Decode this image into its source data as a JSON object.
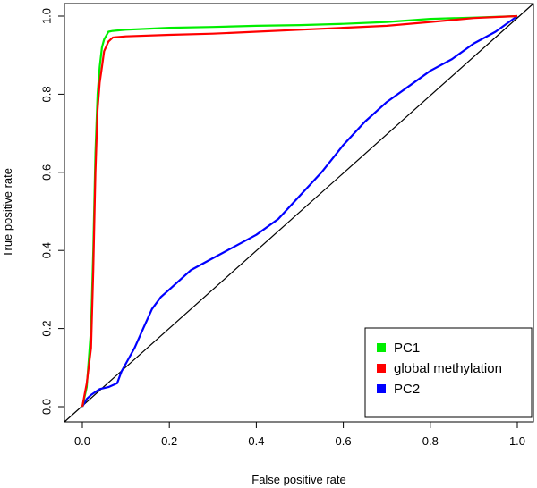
{
  "chart_data": {
    "type": "line",
    "title": "",
    "xlabel": "False positive rate",
    "ylabel": "True positive rate",
    "xlim": [
      0,
      1
    ],
    "ylim": [
      0,
      1
    ],
    "x_ticks": [
      "0.0",
      "0.2",
      "0.4",
      "0.6",
      "0.8",
      "1.0"
    ],
    "y_ticks": [
      "0.0",
      "0.2",
      "0.4",
      "0.6",
      "0.8",
      "1.0"
    ],
    "grid": false,
    "legend_position": "bottom-right",
    "diagonal_reference": true,
    "series": [
      {
        "name": "PC1",
        "color": "#00ee00",
        "x": [
          0,
          0.01,
          0.02,
          0.025,
          0.03,
          0.035,
          0.04,
          0.045,
          0.05,
          0.06,
          0.07,
          0.1,
          0.2,
          0.3,
          0.4,
          0.5,
          0.6,
          0.7,
          0.8,
          0.9,
          1.0
        ],
        "y": [
          0,
          0.05,
          0.2,
          0.4,
          0.65,
          0.8,
          0.87,
          0.92,
          0.94,
          0.96,
          0.962,
          0.965,
          0.97,
          0.972,
          0.975,
          0.977,
          0.98,
          0.985,
          0.993,
          0.996,
          1.0
        ]
      },
      {
        "name": "global methylation",
        "color": "#ff0000",
        "x": [
          0,
          0.005,
          0.01,
          0.02,
          0.025,
          0.03,
          0.035,
          0.04,
          0.045,
          0.05,
          0.06,
          0.07,
          0.1,
          0.2,
          0.3,
          0.4,
          0.5,
          0.6,
          0.7,
          0.8,
          0.9,
          1.0
        ],
        "y": [
          0,
          0.03,
          0.06,
          0.15,
          0.35,
          0.6,
          0.76,
          0.83,
          0.87,
          0.91,
          0.935,
          0.945,
          0.948,
          0.952,
          0.955,
          0.96,
          0.965,
          0.97,
          0.975,
          0.985,
          0.995,
          1.0
        ]
      },
      {
        "name": "PC2",
        "color": "#0000ff",
        "x": [
          0,
          0.01,
          0.02,
          0.04,
          0.06,
          0.08,
          0.09,
          0.1,
          0.12,
          0.14,
          0.16,
          0.18,
          0.2,
          0.25,
          0.3,
          0.35,
          0.4,
          0.45,
          0.5,
          0.55,
          0.6,
          0.65,
          0.7,
          0.75,
          0.8,
          0.85,
          0.9,
          0.95,
          1.0
        ],
        "y": [
          0,
          0.02,
          0.03,
          0.045,
          0.05,
          0.06,
          0.09,
          0.11,
          0.15,
          0.2,
          0.25,
          0.28,
          0.3,
          0.35,
          0.38,
          0.41,
          0.44,
          0.48,
          0.54,
          0.6,
          0.67,
          0.73,
          0.78,
          0.82,
          0.86,
          0.89,
          0.93,
          0.96,
          1.0
        ]
      }
    ]
  }
}
